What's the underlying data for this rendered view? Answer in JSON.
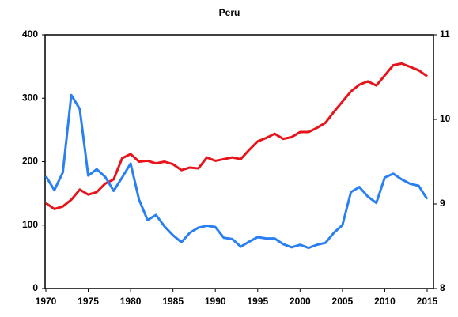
{
  "chart_data": {
    "type": "line",
    "title": "Peru",
    "x": [
      1970,
      1971,
      1972,
      1973,
      1974,
      1975,
      1976,
      1977,
      1978,
      1979,
      1980,
      1981,
      1982,
      1983,
      1984,
      1985,
      1986,
      1987,
      1988,
      1989,
      1990,
      1991,
      1992,
      1993,
      1994,
      1995,
      1996,
      1997,
      1998,
      1999,
      2000,
      2001,
      2002,
      2003,
      2004,
      2005,
      2006,
      2007,
      2008,
      2009,
      2010,
      2011,
      2012,
      2013,
      2014,
      2015
    ],
    "xlim": [
      1970,
      2015
    ],
    "xticks": [
      1970,
      1975,
      1980,
      1985,
      1990,
      1995,
      2000,
      2005,
      2010,
      2015
    ],
    "ylim": [
      0,
      400
    ],
    "yticks": [
      0,
      100,
      200,
      300,
      400
    ],
    "y2lim": [
      8,
      11
    ],
    "y2ticks": [
      8,
      9,
      10,
      11
    ],
    "series": [
      {
        "color": "#e8141b",
        "axis": "y2",
        "values": [
          9.01,
          8.94,
          8.97,
          9.05,
          9.17,
          9.11,
          9.14,
          9.24,
          9.29,
          9.54,
          9.59,
          9.5,
          9.51,
          9.48,
          9.5,
          9.47,
          9.4,
          9.43,
          9.42,
          9.55,
          9.51,
          9.53,
          9.55,
          9.53,
          9.64,
          9.74,
          9.78,
          9.83,
          9.77,
          9.79,
          9.85,
          9.85,
          9.9,
          9.96,
          10.09,
          10.21,
          10.33,
          10.41,
          10.45,
          10.4,
          10.52,
          10.64,
          10.66,
          10.62,
          10.58,
          10.51
        ]
      },
      {
        "color": "#2a7ff2",
        "values": [
          177,
          155,
          183,
          305,
          283,
          178,
          188,
          176,
          154,
          175,
          197,
          140,
          108,
          116,
          98,
          84,
          73,
          88,
          96,
          99,
          97,
          80,
          78,
          66,
          74,
          81,
          79,
          79,
          70,
          65,
          69,
          64,
          69,
          72,
          88,
          100,
          152,
          160,
          145,
          135,
          175,
          181,
          172,
          165,
          162,
          141
        ]
      }
    ]
  }
}
